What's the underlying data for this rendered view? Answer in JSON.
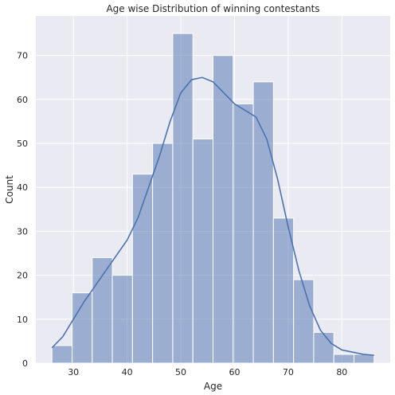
{
  "chart_data": {
    "type": "bar",
    "subtype": "histogram",
    "title": "Age wise Distribution of winning contestants",
    "xlabel": "Age",
    "ylabel": "Count",
    "xlim": [
      23,
      89
    ],
    "ylim": [
      0,
      79
    ],
    "xticks": [
      30,
      40,
      50,
      60,
      70,
      80
    ],
    "yticks": [
      0,
      10,
      20,
      30,
      40,
      50,
      60,
      70
    ],
    "grid": true,
    "bin_edges": [
      26,
      29.75,
      33.5,
      37.25,
      41,
      44.75,
      48.5,
      52.25,
      56,
      59.75,
      63.5,
      67.25,
      71,
      74.75,
      78.5,
      82.25,
      86
    ],
    "values": [
      4,
      16,
      24,
      20,
      43,
      50,
      75,
      51,
      70,
      59,
      64,
      33,
      19,
      7,
      2,
      2
    ],
    "kde": {
      "x": [
        26,
        28,
        30,
        32,
        34,
        36,
        38,
        40,
        42,
        44,
        46,
        48,
        50,
        52,
        54,
        56,
        58,
        60,
        62,
        64,
        66,
        68,
        70,
        72,
        74,
        76,
        78,
        80,
        82,
        84,
        86
      ],
      "y": [
        3.5,
        6,
        10,
        14,
        17.5,
        21,
        24.5,
        28,
        33,
        40,
        47,
        55,
        61.5,
        64.5,
        65,
        64,
        61.5,
        59,
        57.5,
        56,
        51,
        42,
        31,
        21,
        13,
        7.5,
        4.5,
        3,
        2.5,
        2,
        1.8
      ]
    },
    "colors": {
      "bar_fill": "#4c72b0",
      "bar_stroke": "#ffffff",
      "line": "#4c72b0",
      "plot_background": "#eaeaf2",
      "grid": "#ffffff"
    }
  }
}
